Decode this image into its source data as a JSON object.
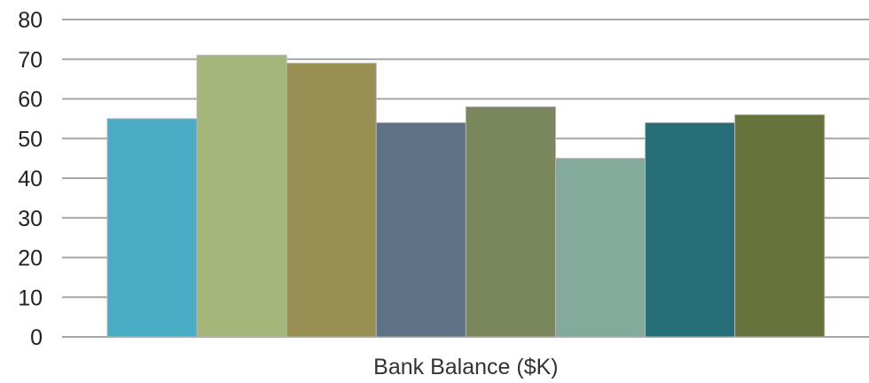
{
  "chart_data": {
    "type": "bar",
    "categories": [
      "Bank Balance ($K)"
    ],
    "series": [
      {
        "values": [
          55
        ],
        "color": "#4bacc6"
      },
      {
        "values": [
          71
        ],
        "color": "#a5b67b"
      },
      {
        "values": [
          69
        ],
        "color": "#988f52"
      },
      {
        "values": [
          54
        ],
        "color": "#5f7185"
      },
      {
        "values": [
          58
        ],
        "color": "#7a865b"
      },
      {
        "values": [
          45
        ],
        "color": "#83aa9b"
      },
      {
        "values": [
          54
        ],
        "color": "#256e78"
      },
      {
        "values": [
          56
        ],
        "color": "#66743c"
      }
    ],
    "ylim": [
      0,
      80
    ],
    "yticks": [
      0,
      10,
      20,
      30,
      40,
      50,
      60,
      70,
      80
    ],
    "grid": true,
    "legend": "none",
    "title": "",
    "xlabel": "",
    "ylabel": ""
  }
}
